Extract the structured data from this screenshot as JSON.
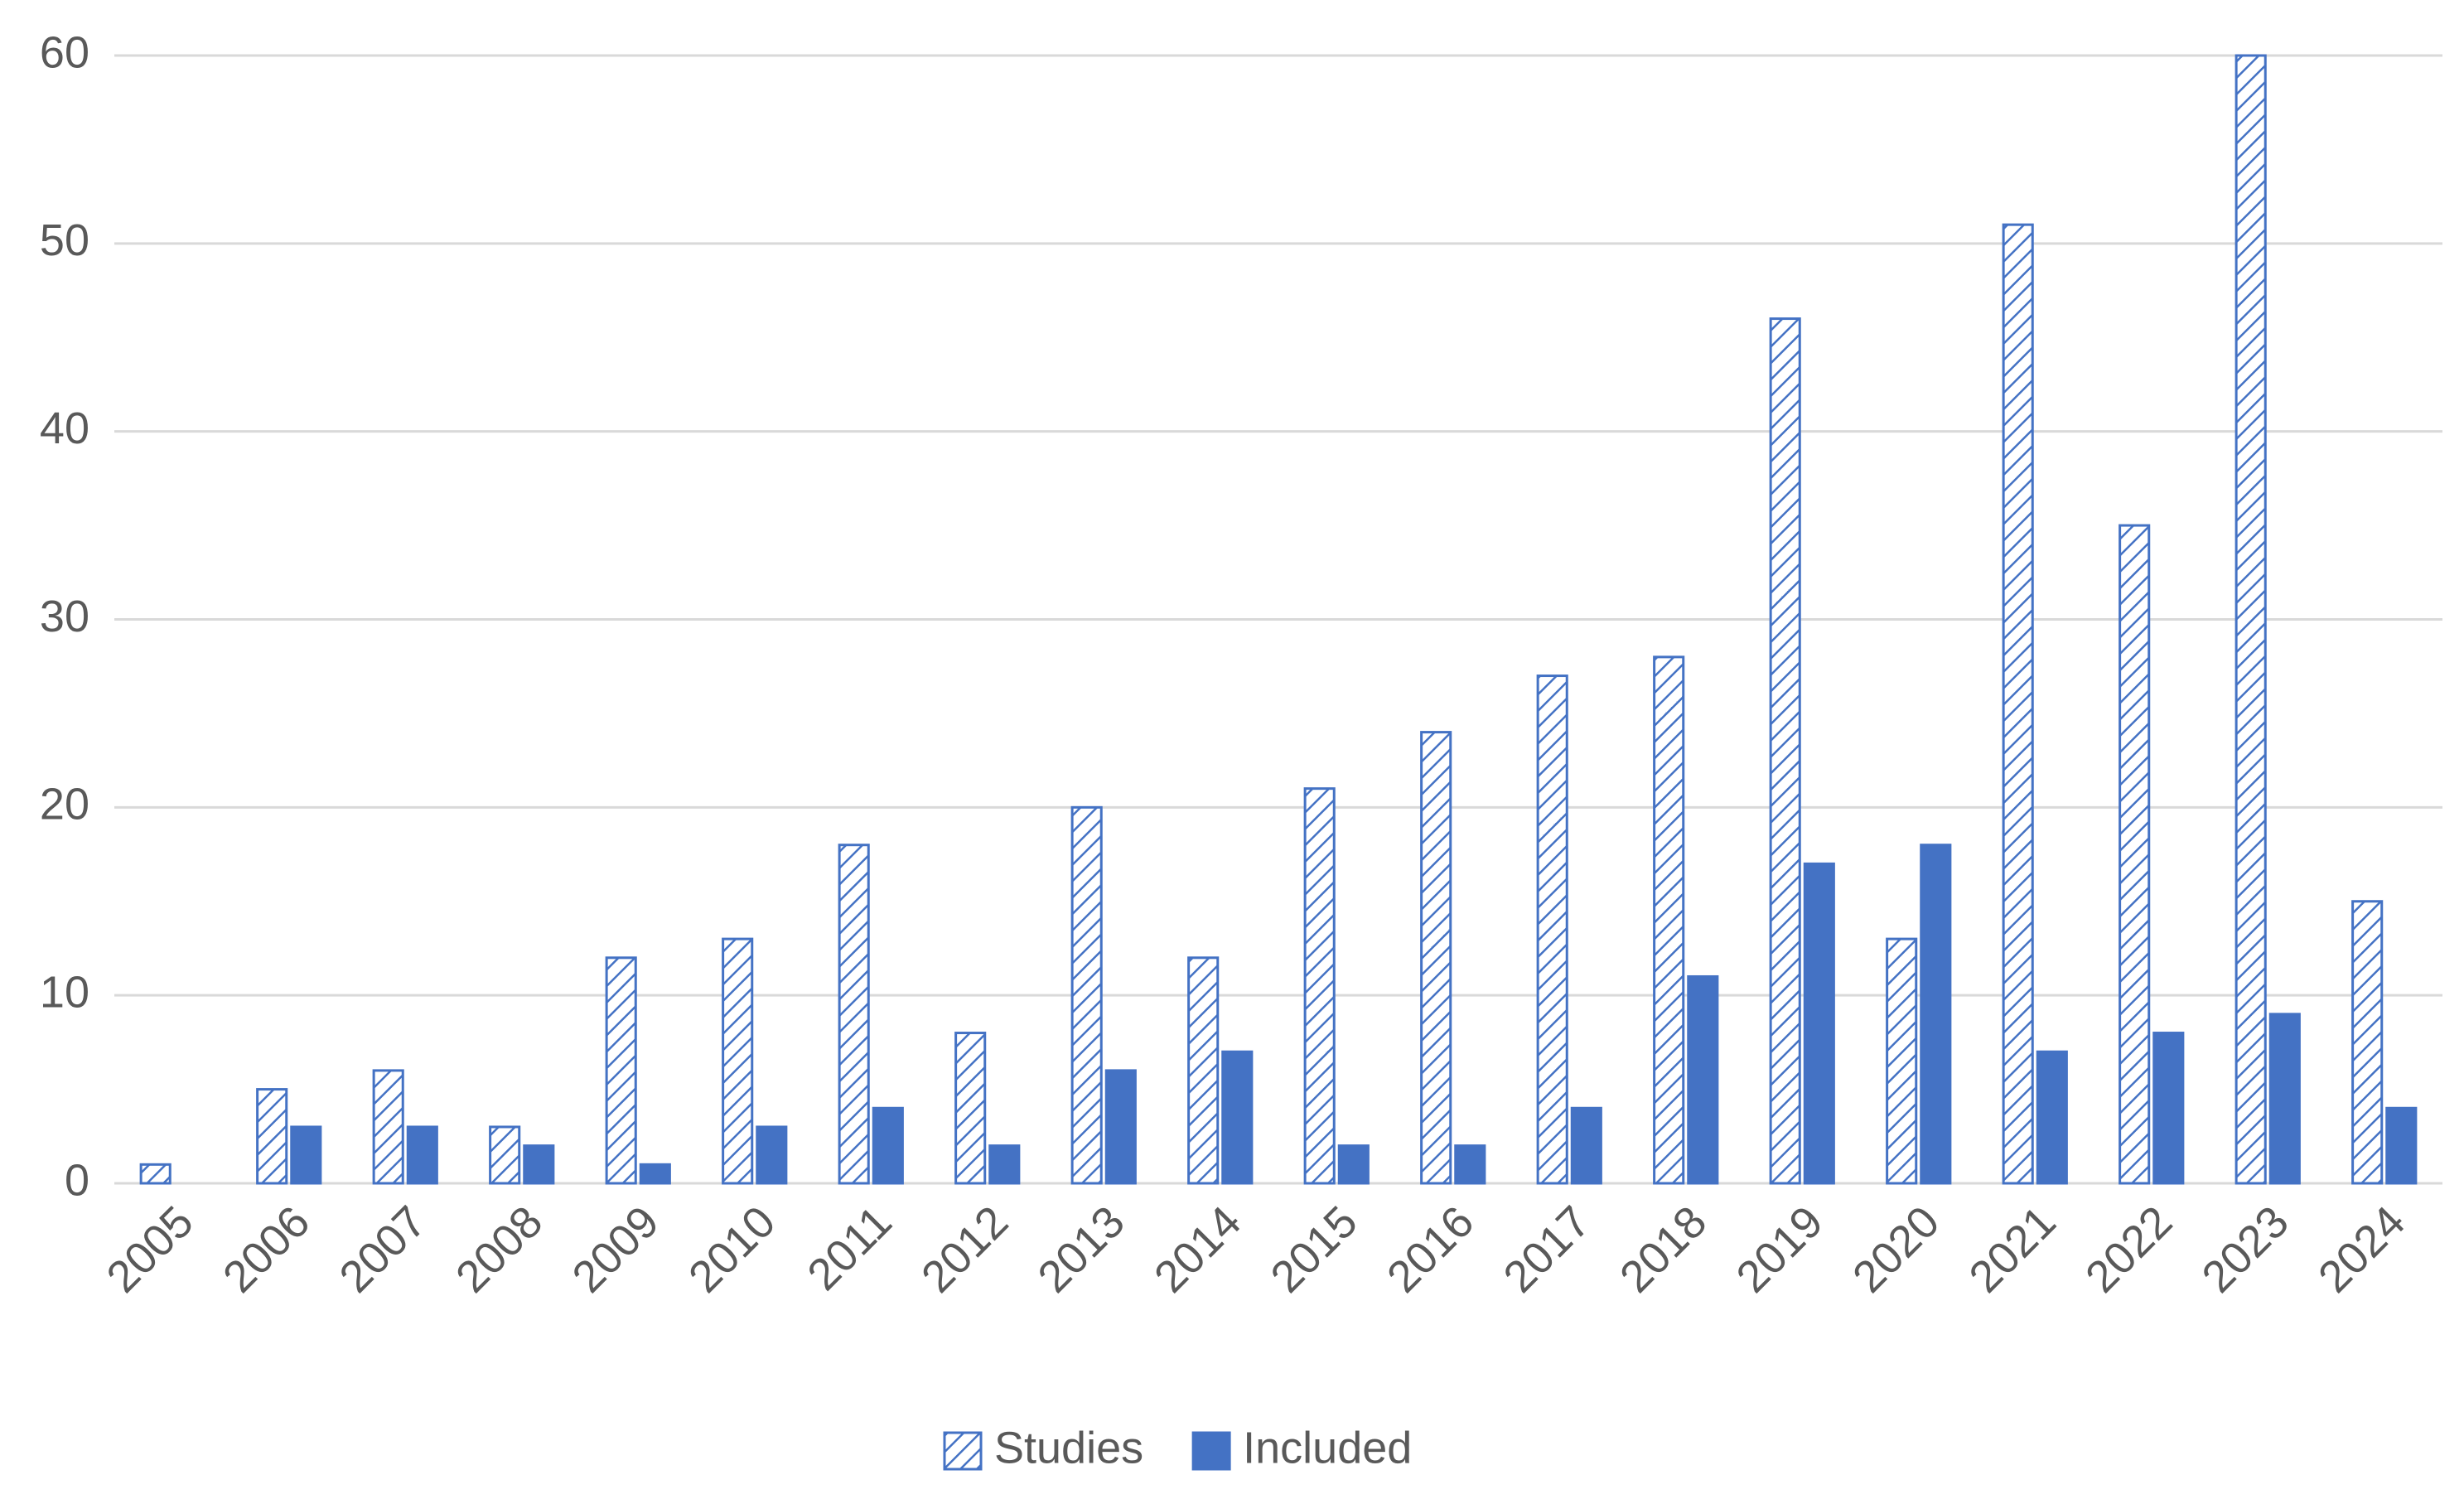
{
  "chart_data": {
    "type": "bar",
    "categories": [
      "2005",
      "2006",
      "2007",
      "2008",
      "2009",
      "2010",
      "2011",
      "2012",
      "2013",
      "2014",
      "2015",
      "2016",
      "2017",
      "2018",
      "2019",
      "2020",
      "2021",
      "2022",
      "2023",
      "2024"
    ],
    "series": [
      {
        "name": "Studies",
        "color": "#4472c4",
        "pattern": "hatch",
        "values": [
          1,
          5,
          6,
          3,
          12,
          13,
          18,
          8,
          20,
          12,
          21,
          24,
          27,
          28,
          46,
          13,
          51,
          35,
          60,
          15
        ]
      },
      {
        "name": "Included",
        "color": "#4472c4",
        "pattern": "solid",
        "values": [
          0,
          3,
          3,
          2,
          1,
          3,
          4,
          2,
          6,
          7,
          2,
          2,
          4,
          11,
          17,
          18,
          7,
          8,
          9,
          4
        ]
      }
    ],
    "ylim": [
      0,
      60
    ],
    "yticks": [
      0,
      10,
      20,
      30,
      40,
      50,
      60
    ],
    "grid": true,
    "legend": "bottom"
  }
}
